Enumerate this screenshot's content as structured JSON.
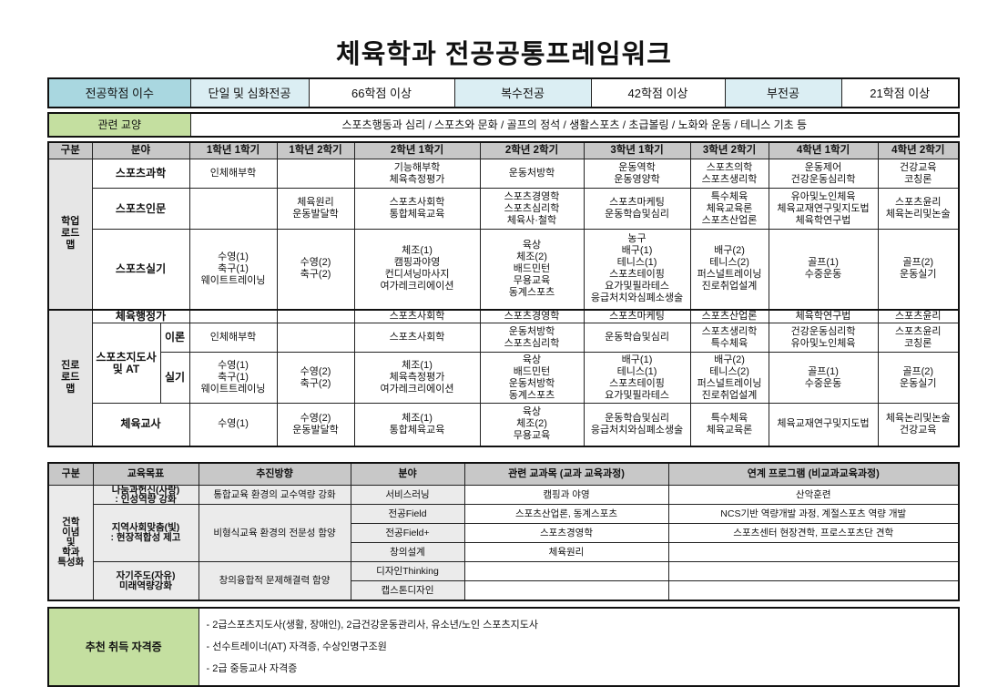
{
  "title": "체육학과 전공공통프레임워크",
  "credits": {
    "label": "전공학점 이수",
    "items": [
      {
        "type": "단일 및 심화전공",
        "value": "66학점 이상"
      },
      {
        "type": "복수전공",
        "value": "42학점 이상"
      },
      {
        "type": "부전공",
        "value": "21학점 이상"
      }
    ]
  },
  "liberal": {
    "label": "관련 교양",
    "value": "스포츠행동과 심리 / 스포츠와 문화 / 골프의 정석 / 생활스포츠 / 초급볼링 / 노화와 운동 / 테니스 기초 등"
  },
  "roadmap": {
    "headers": [
      "구분",
      "분야",
      "1학년 1학기",
      "1학년 2학기",
      "2학년 1학기",
      "2학년 2학기",
      "3학년 1학기",
      "3학년 2학기",
      "4학년 1학기",
      "4학년 2학기"
    ],
    "academic": {
      "label": "학업\n로드\n맵",
      "rows": [
        {
          "field": "스포츠과학",
          "cells": [
            "인체해부학",
            "",
            "기능해부학\n체육측정평가",
            "운동처방학",
            "운동역학\n운동영양학",
            "스포츠의학\n스포츠생리학",
            "운동제어\n건강운동심리학",
            "건강교육\n코칭론"
          ]
        },
        {
          "field": "스포츠인문",
          "cells": [
            "",
            "체육원리\n운동발달학",
            "스포츠사회학\n통합체육교육",
            "스포츠경영학\n스포츠심리학\n체육사·철학",
            "스포츠마케팅\n운동학습및심리",
            "특수체육\n체육교육론\n스포츠산업론",
            "유아및노인체육\n체육교재연구및지도법\n체육학연구법",
            "스포츠윤리\n체육논리및논술"
          ]
        },
        {
          "field": "스포츠실기",
          "cells": [
            "수영(1)\n축구(1)\n웨이트트레이닝",
            "수영(2)\n축구(2)",
            "체조(1)\n캠핑과야영\n컨디셔닝마사지\n여가레크리에이션",
            "육상\n체조(2)\n배드민턴\n무용교육\n동계스포츠",
            "농구\n배구(1)\n테니스(1)\n스포츠테이핑\n요가및필라테스\n응급처치와심폐소생술",
            "배구(2)\n테니스(2)\n퍼스널트레이닝\n진로취업설계",
            "골프(1)\n수중운동",
            "골프(2)\n운동실기"
          ]
        }
      ]
    },
    "career": {
      "label": "진로\n로드\n맵",
      "admin": {
        "field": "체육행정가",
        "cells": [
          "",
          "",
          "스포츠사회학",
          "스포츠경영학",
          "스포츠마케팅",
          "스포츠산업론",
          "체육학연구법",
          "스포츠윤리"
        ]
      },
      "coach": {
        "field": "스포츠지도사\n및 AT",
        "theory": {
          "sub": "이론",
          "cells": [
            "인체해부학",
            "",
            "스포츠사회학",
            "운동처방학\n스포츠심리학",
            "운동학습및심리",
            "스포츠생리학\n특수체육",
            "건강운동심리학\n유아및노인체육",
            "스포츠윤리\n코칭론"
          ]
        },
        "practice": {
          "sub": "실기",
          "cells": [
            "수영(1)\n축구(1)\n웨이트트레이닝",
            "수영(2)\n축구(2)",
            "체조(1)\n체육측정평가\n여가레크리에이션",
            "육상\n배드민턴\n운동처방학\n동계스포츠",
            "배구(1)\n테니스(1)\n스포츠테이핑\n요가및필라테스",
            "배구(2)\n테니스(2)\n퍼스널트레이닝\n진로취업설계",
            "골프(1)\n수중운동",
            "골프(2)\n운동실기"
          ]
        }
      },
      "teacher": {
        "field": "체육교사",
        "cells": [
          "수영(1)",
          "수영(2)\n운동발달학",
          "체조(1)\n통합체육교육",
          "육상\n체조(2)\n무용교육",
          "운동학습및심리\n응급처치와심폐소생술",
          "특수체육\n체육교육론",
          "체육교재연구및지도법",
          "체육논리및논술\n건강교육"
        ]
      }
    }
  },
  "program": {
    "headers": [
      "구분",
      "교육목표",
      "추진방향",
      "분야",
      "관련 교과목 (교과 교육과정)",
      "연계 프로그램 (비교과교육과정)"
    ],
    "category": "건학\n이념\n및\n학과\n특성화",
    "goals": [
      {
        "goal": "나눔과헌신(사랑)\n: 인성역량 강화",
        "direction": "통합교육 환경의 교수역량 강화"
      },
      {
        "goal": "지역사회맞춤(빛)\n: 현장적합성 제고",
        "direction": "비형식교육 환경의 전문성 함양"
      },
      {
        "goal": "자기주도(자유)\n미래역량강화",
        "direction": "창의융합적 문제해결력 함양"
      }
    ],
    "rows": [
      {
        "field": "서비스러닝",
        "courses": "캠핑과 야영",
        "programs": "산악훈련"
      },
      {
        "field": "전공Field",
        "courses": "스포츠산업론, 동계스포츠",
        "programs": "NCS기반 역량개발 과정, 계절스포츠 역량 개발"
      },
      {
        "field": "전공Field+",
        "courses": "스포츠경영학",
        "programs": "스포츠센터 현장견학, 프로스포츠단 견학"
      },
      {
        "field": "창의설계",
        "courses": "체육원리",
        "programs": ""
      },
      {
        "field": "디자인Thinking",
        "courses": "",
        "programs": ""
      },
      {
        "field": "캡스톤디자인",
        "courses": "",
        "programs": ""
      }
    ]
  },
  "certificates": {
    "label": "추천 취득 자격증",
    "items": [
      "- 2급스포츠지도사(생활, 장애인), 2급건강운동관리사, 유소년/노인 스포츠지도사",
      "- 선수트레이너(AT) 자격증, 수상인명구조원",
      "- 2급 중등교사 자격증"
    ]
  }
}
